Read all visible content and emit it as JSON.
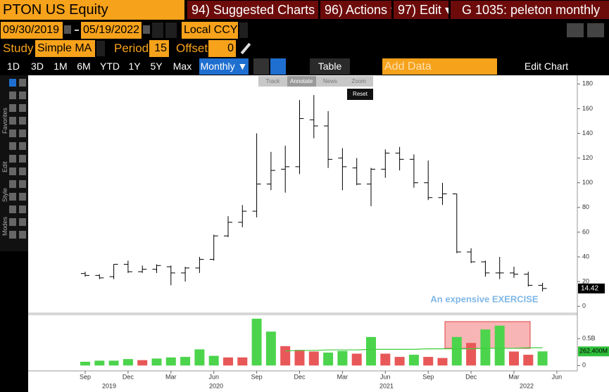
{
  "toolbar": {
    "ticker": "PTON US Equity",
    "menus": [
      "94) Suggested Charts ▾",
      "96) Actions ▾",
      "97) Edit ▾"
    ],
    "chart_name": "G 1035: peleton monthly"
  },
  "range": {
    "start": "09/30/2019",
    "end": "05/19/2022",
    "currency": "Local CCY"
  },
  "study": {
    "label": "Study",
    "name": "Simple MA",
    "period_label": "Period",
    "period": 15,
    "offset_label": "Offset",
    "offset": 0
  },
  "periods": [
    "1D",
    "3D",
    "1M",
    "6M",
    "YTD",
    "1Y",
    "5Y",
    "Max"
  ],
  "frequency": "Monthly ▼",
  "table": "Table",
  "add_data": "Add Data",
  "edit_chart": "Edit Chart",
  "chart_tools": [
    "Track",
    "Annotate",
    "News",
    "Zoom"
  ],
  "reset": "Reset",
  "sidebar": [
    "Favorites",
    "Edit",
    "Style",
    "Modes"
  ],
  "chart_data": [
    {
      "type": "ohlc",
      "categories": [
        "Sep",
        null,
        null,
        "Dec",
        null,
        null,
        "Mar",
        null,
        null,
        "Jun",
        null,
        null,
        "Sep",
        null,
        null,
        "Dec",
        null,
        null,
        "Mar",
        null,
        null,
        "Jun",
        null,
        null,
        "Sep",
        null,
        null,
        "Dec",
        null,
        null,
        "Mar",
        null,
        null,
        "Jun"
      ],
      "years": [
        "2019",
        "2020",
        "2021",
        "2022"
      ],
      "series": [
        {
          "color": "#000000",
          "open": [
            26.5,
            25,
            24,
            34,
            28,
            30,
            32,
            27,
            31,
            38,
            57,
            68,
            77,
            99,
            111,
            113,
            151,
            146,
            120,
            112,
            99,
            111,
            124,
            119,
            100,
            88,
            91,
            44,
            36,
            27,
            27,
            26,
            17,
            null
          ],
          "high": [
            28,
            26,
            34,
            37,
            33,
            34,
            33,
            32,
            40,
            58,
            73,
            82,
            140,
            125,
            130,
            167,
            171,
            158,
            128,
            120,
            112,
            127,
            129,
            123,
            118,
            100,
            91,
            47,
            37,
            40,
            32,
            28,
            19,
            null
          ],
          "low": [
            24,
            22,
            22,
            27,
            27,
            27,
            17,
            20,
            27,
            37,
            56,
            64,
            72,
            94,
            92,
            107,
            136,
            112,
            94,
            98,
            81,
            104,
            110,
            96,
            86,
            82,
            43,
            35,
            24,
            22,
            23,
            16,
            12,
            null
          ],
          "close": [
            25,
            23,
            34,
            28,
            30,
            33,
            27,
            31,
            38,
            57,
            68,
            77,
            99,
            110,
            113,
            152,
            146,
            119,
            113,
            99,
            111,
            124,
            119,
            100,
            88,
            91,
            44,
            36,
            27,
            27,
            26,
            17,
            14.42,
            null
          ]
        }
      ],
      "ylim": [
        -5,
        187
      ],
      "yticks": [
        0,
        20,
        40,
        60,
        80,
        100,
        120,
        140,
        160,
        180
      ],
      "annotation": "An expensive EXERCISE",
      "annotation_color": "#7fb7e6"
    },
    {
      "type": "bar",
      "series": [
        {
          "values": [
            0.07,
            0.09,
            0.09,
            0.12,
            0.1,
            0.13,
            0.15,
            0.16,
            0.3,
            0.18,
            0.15,
            0.15,
            0.87,
            0.63,
            0.36,
            0.29,
            0.26,
            0.24,
            0.27,
            0.22,
            0.53,
            0.22,
            0.16,
            0.2,
            0.16,
            0.14,
            0.53,
            0.42,
            0.67,
            0.74,
            0.26,
            0.2,
            0.2624,
            null
          ],
          "colors": [
            "#4cd44c",
            "#4cd44c",
            "#4cd44c",
            "#4cd44c",
            "#e85858",
            "#4cd44c",
            "#4cd44c",
            "#4cd44c",
            "#4cd44c",
            "#4cd44c",
            "#e85858",
            "#e85858",
            "#4cd44c",
            "#4cd44c",
            "#e85858",
            "#e85858",
            "#e85858",
            "#4cd44c",
            "#4cd44c",
            "#e85858",
            "#4cd44c",
            "#e85858",
            "#e85858",
            "#4cd44c",
            "#e85858",
            "#e85858",
            "#4cd44c",
            "#e85858",
            "#4cd44c",
            "#4cd44c",
            "#e85858",
            "#e85858",
            "#4cd44c",
            null
          ],
          "last_label": "262.400M"
        },
        {
          "type": "line",
          "color": "#3ecf3e",
          "values": [
            null,
            null,
            null,
            null,
            null,
            null,
            null,
            null,
            null,
            null,
            null,
            null,
            null,
            null,
            0.27,
            0.28,
            0.28,
            0.29,
            0.29,
            0.29,
            0.3,
            0.3,
            0.3,
            0.3,
            0.31,
            0.31,
            0.31,
            0.31,
            0.32,
            0.32,
            0.32,
            0.33,
            0.33,
            null
          ]
        }
      ],
      "ylim": [
        -0.1,
        0.92
      ],
      "yticks": [
        0,
        {
          "value": 0.5,
          "label": "0.5B"
        }
      ]
    }
  ]
}
